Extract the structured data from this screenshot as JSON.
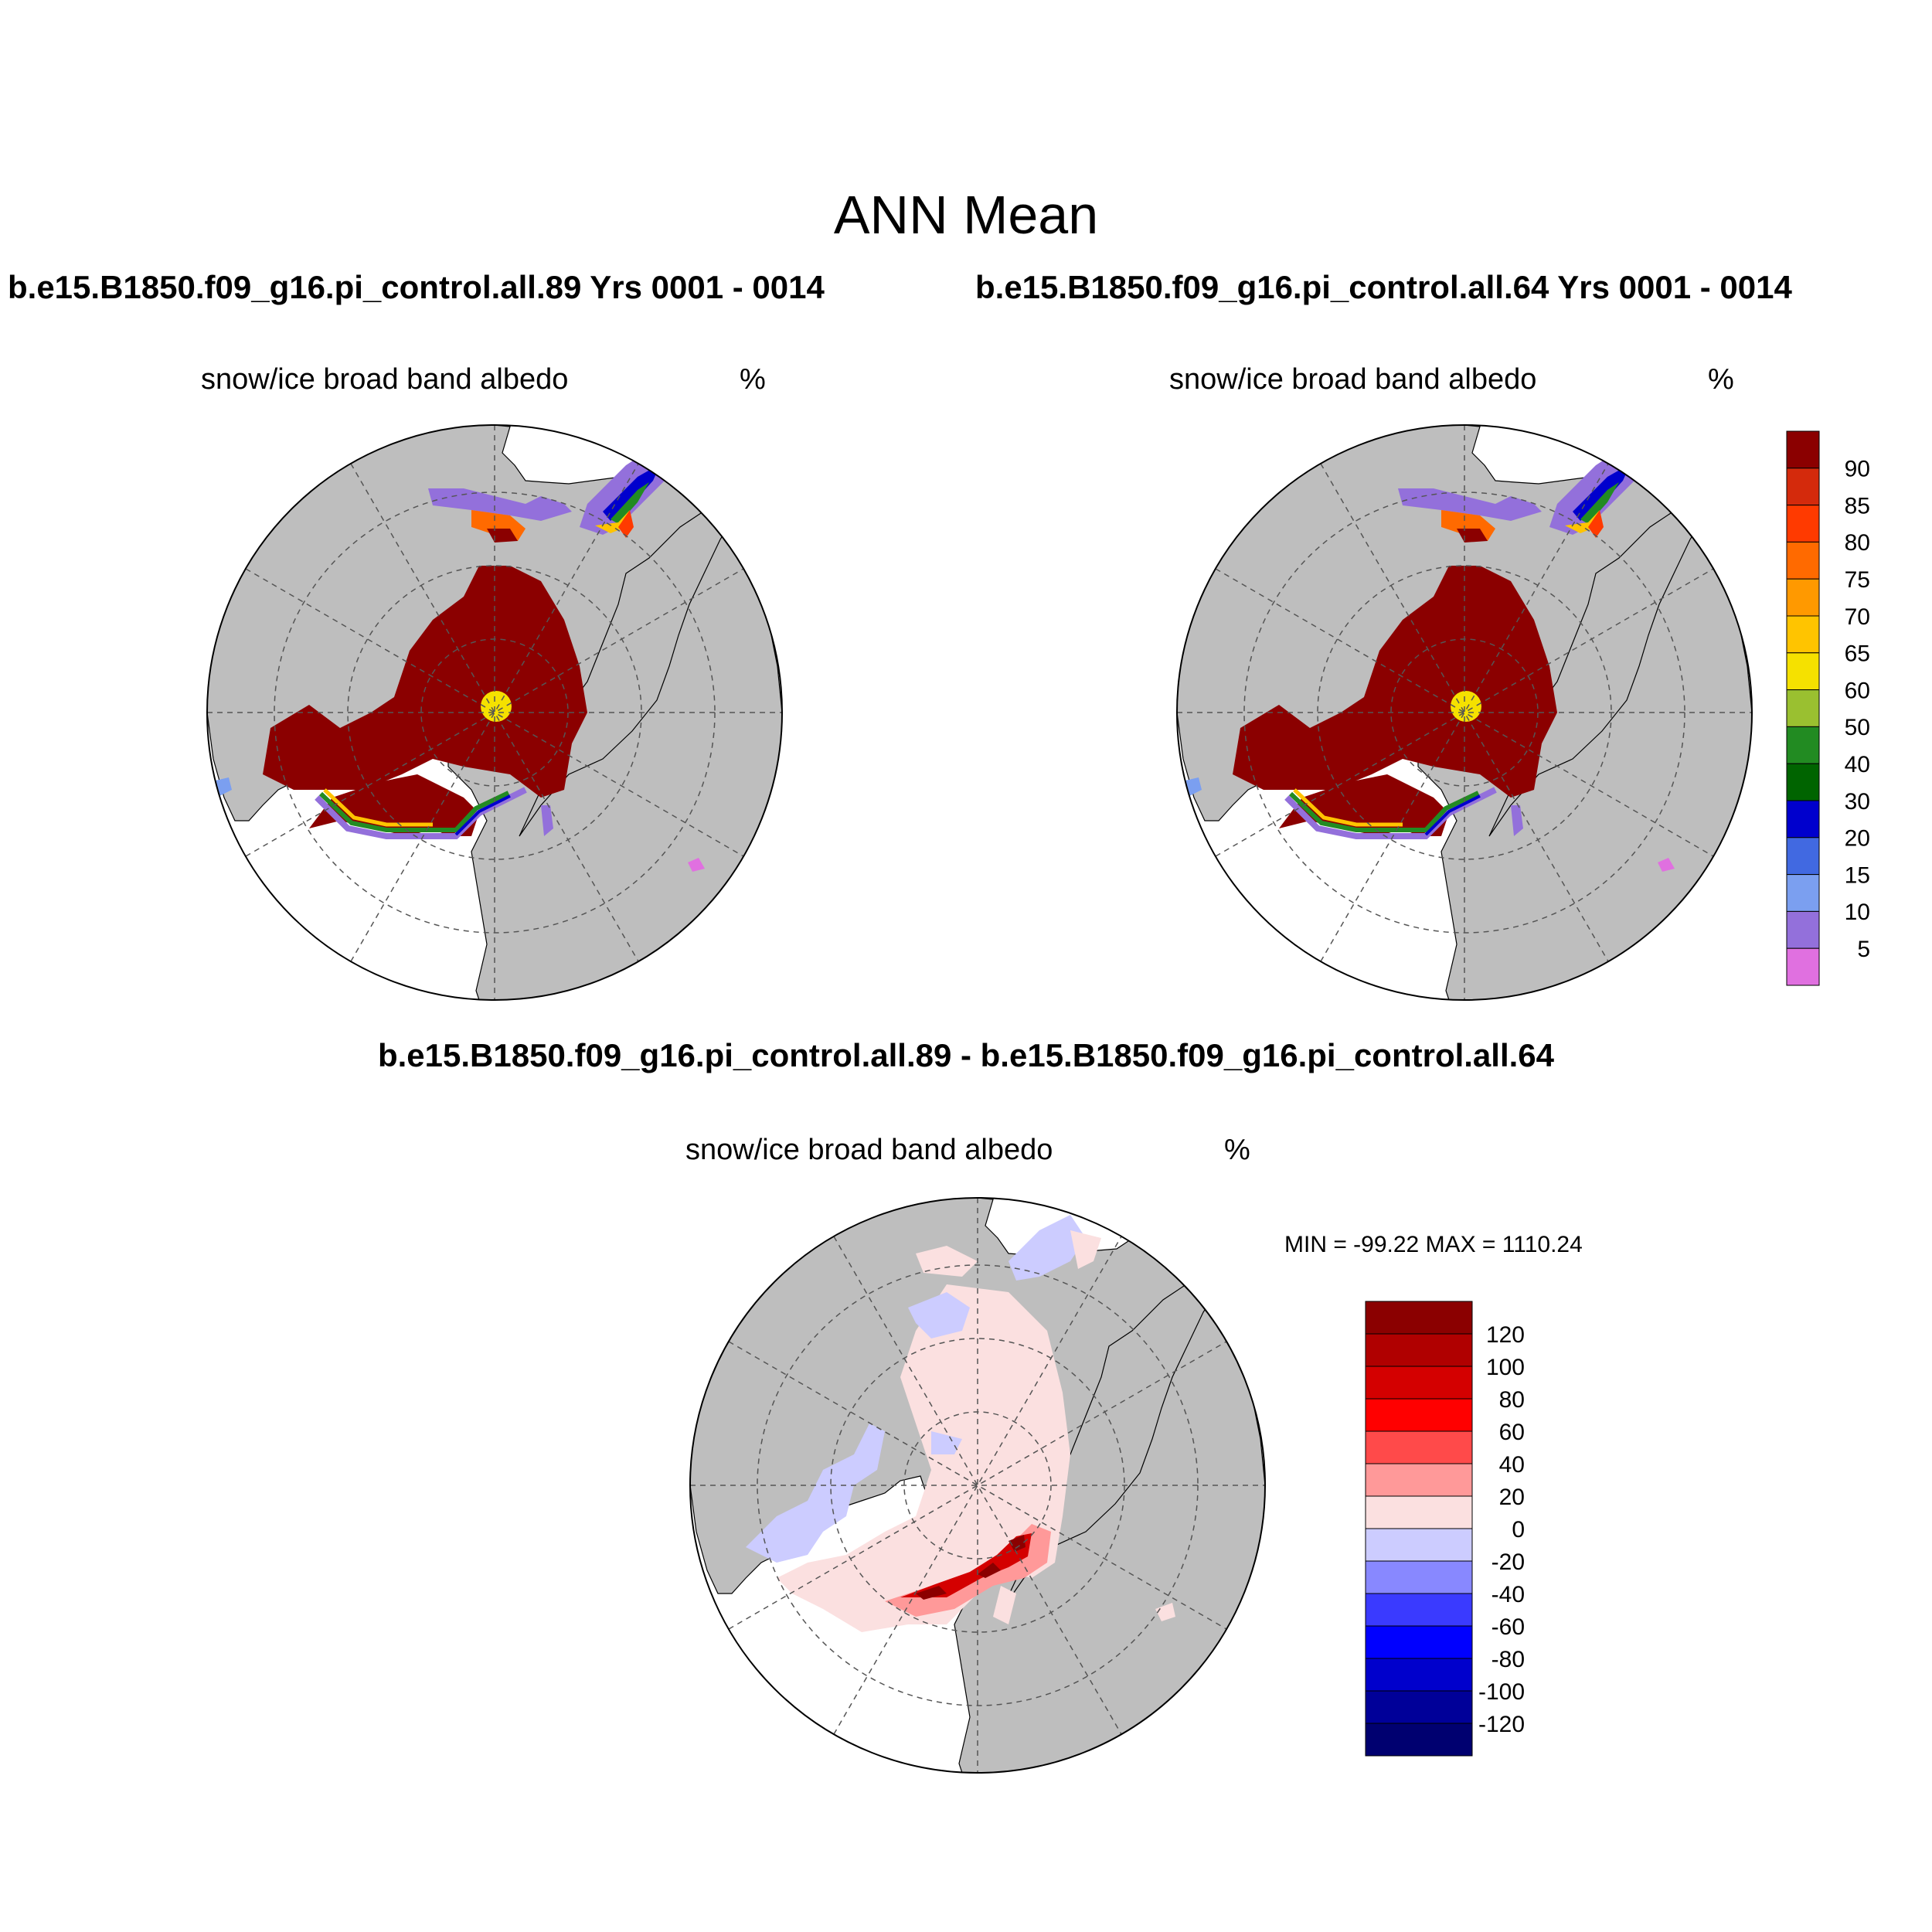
{
  "main_title": "ANN Mean",
  "panel_left": {
    "case_title": "b.e15.B1850.f09_g16.pi_control.all.89  Yrs 0001 - 0014",
    "variable": "snow/ice broad band albedo",
    "units": "%"
  },
  "panel_right": {
    "case_title": "b.e15.B1850.f09_g16.pi_control.all.64  Yrs 0001 - 0014",
    "variable": "snow/ice broad band albedo",
    "units": "%"
  },
  "panel_diff": {
    "case_title": "b.e15.B1850.f09_g16.pi_control.all.89 - b.e15.B1850.f09_g16.pi_control.all.64",
    "variable": "snow/ice broad band albedo",
    "units": "%",
    "minmax": "MIN = -99.22 MAX = 1110.24"
  },
  "colorbar_abs": {
    "labels": [
      "90",
      "85",
      "80",
      "75",
      "70",
      "65",
      "60",
      "50",
      "40",
      "30",
      "20",
      "15",
      "10",
      "5"
    ],
    "colors": [
      "#8b0000",
      "#d42a0c",
      "#ff3a00",
      "#ff6a00",
      "#ff9900",
      "#ffc400",
      "#f5e100",
      "#9ac030",
      "#228b22",
      "#006400",
      "#0000cd",
      "#4169e1",
      "#7b9ff0",
      "#9370db",
      "#e070e0"
    ]
  },
  "colorbar_diff": {
    "labels": [
      "120",
      "100",
      "80",
      "60",
      "40",
      "20",
      "0",
      "-20",
      "-40",
      "-60",
      "-80",
      "-100",
      "-120"
    ],
    "colors": [
      "#8b0000",
      "#b00000",
      "#d40000",
      "#ff0000",
      "#ff4a4a",
      "#ff9999",
      "#fbe0e0",
      "#ccccff",
      "#8888ff",
      "#3a3aff",
      "#0000ff",
      "#0000cc",
      "#000099",
      "#000070"
    ]
  }
}
